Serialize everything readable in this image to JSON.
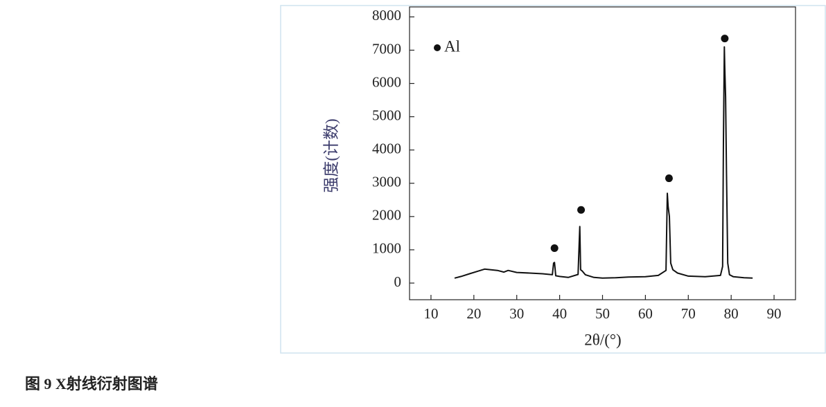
{
  "chart_data": {
    "type": "line",
    "ylabel": "强度(计数)",
    "xlabel": "2θ/(°)",
    "xlim": [
      5,
      95
    ],
    "xticks": [
      10,
      20,
      30,
      40,
      50,
      60,
      70,
      80,
      90
    ],
    "ylim": [
      -500,
      8300
    ],
    "yticks": [
      0,
      1000,
      2000,
      3000,
      4000,
      5000,
      6000,
      7000,
      8000
    ],
    "legend": "upper left",
    "series": [
      {
        "color": "#111111",
        "x": [
          15.5,
          17,
          19,
          21,
          22.5,
          24,
          25.5,
          27,
          28,
          30,
          33,
          36,
          38.3,
          38.6,
          38.8,
          39.1,
          40,
          42,
          44.3,
          44.7,
          44.9,
          45.3,
          46,
          48,
          50,
          53,
          56,
          60,
          63,
          64.8,
          65.1,
          65.3,
          65.6,
          65.9,
          66.4,
          67.5,
          70,
          74,
          77.5,
          78,
          78.2,
          78.4,
          78.5,
          78.7,
          78.9,
          79.2,
          79.6,
          80.5,
          83,
          85
        ],
        "values": [
          150,
          200,
          280,
          360,
          420,
          400,
          380,
          330,
          380,
          320,
          300,
          280,
          250,
          600,
          620,
          220,
          200,
          170,
          260,
          1700,
          400,
          360,
          250,
          170,
          150,
          160,
          180,
          190,
          230,
          380,
          2700,
          2300,
          2000,
          600,
          400,
          300,
          210,
          190,
          230,
          500,
          4300,
          7100,
          6500,
          5600,
          3300,
          600,
          250,
          190,
          160,
          150
        ]
      },
      {
        "name": "Al",
        "color": "#111111",
        "x": [
          38.8,
          45,
          65.5,
          78.5
        ],
        "values": [
          1050,
          2200,
          3150,
          7350
        ]
      }
    ]
  },
  "caption": "图 9 X射线衍射图谱"
}
